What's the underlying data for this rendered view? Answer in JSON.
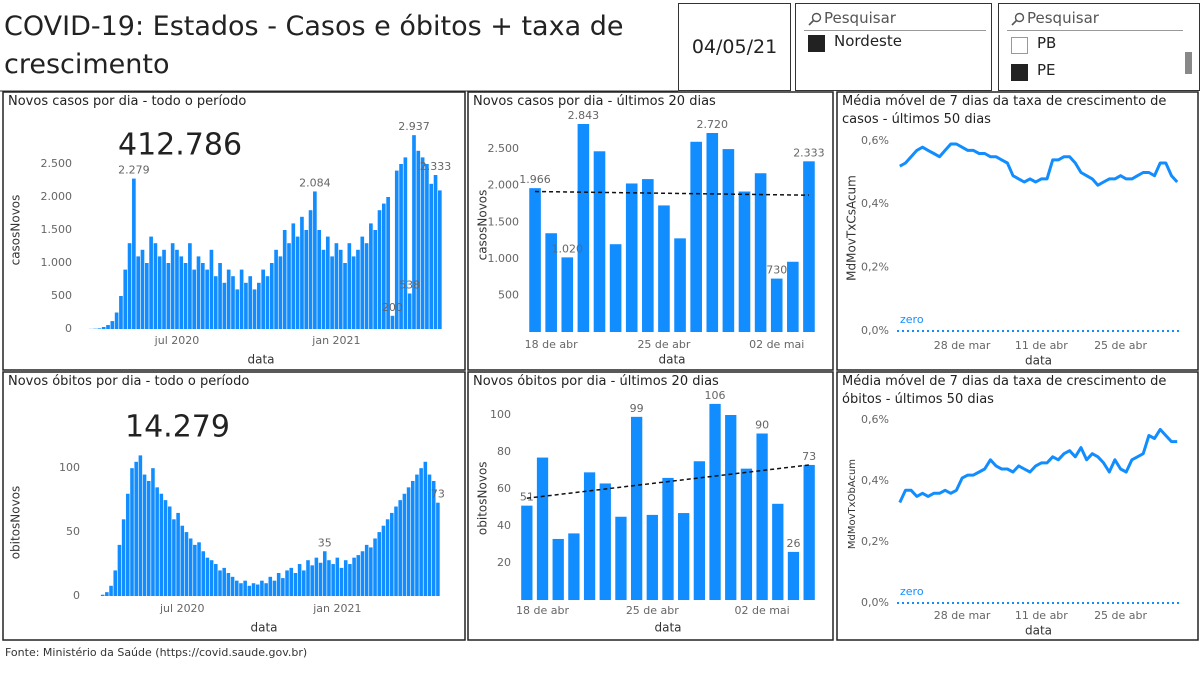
{
  "header": {
    "title": "COVID-19: Estados - Casos e óbitos + taxa de crescimento",
    "date": "04/05/21"
  },
  "slicers": [
    {
      "search": "Pesquisar",
      "items": [
        {
          "label": "Nordeste",
          "selected": true
        }
      ]
    },
    {
      "search": "Pesquisar",
      "items": [
        {
          "label": "PB",
          "selected": false
        },
        {
          "label": "PE",
          "selected": true
        }
      ]
    }
  ],
  "footer": "Fonte: Ministério da Saúde (https://covid.saude.gov.br)",
  "chart_data": [
    {
      "type": "bar",
      "title": "Novos casos por dia - todo o período",
      "total": {
        "value": 412786,
        "label": "412.786"
      },
      "x_label": "data",
      "y_label": "casosNovos",
      "color": "#118dff",
      "categories": [
        null,
        null,
        null,
        null,
        null,
        null,
        null,
        null,
        null,
        null,
        null,
        null,
        null,
        null,
        null,
        null,
        null,
        null,
        null,
        null,
        null,
        null,
        "jul 2020",
        null,
        null,
        null,
        null,
        null,
        null,
        null,
        null,
        null,
        null,
        null,
        null,
        null,
        null,
        null,
        null,
        null,
        null,
        null,
        null,
        null,
        null,
        null,
        null,
        null,
        null,
        null,
        null,
        null,
        null,
        null,
        null,
        null,
        null,
        null,
        null,
        "jan 2021",
        null,
        null,
        null,
        null,
        null,
        null,
        null,
        null,
        null,
        null,
        null,
        null,
        null,
        null,
        null,
        null,
        null,
        null,
        null,
        null,
        null,
        null,
        null,
        null
      ],
      "values": [
        0,
        0,
        2,
        5,
        10,
        30,
        60,
        120,
        250,
        500,
        900,
        1300,
        2279,
        1100,
        1200,
        1000,
        1400,
        1300,
        1100,
        1200,
        1000,
        1300,
        1200,
        1100,
        1000,
        1300,
        900,
        1100,
        1000,
        900,
        1200,
        800,
        1000,
        700,
        900,
        800,
        600,
        900,
        700,
        800,
        600,
        700,
        900,
        800,
        1000,
        1200,
        1100,
        1500,
        1300,
        1600,
        1400,
        1700,
        1500,
        1800,
        2084,
        1500,
        1200,
        1400,
        1100,
        1300,
        1200,
        1000,
        1300,
        1100,
        1200,
        1400,
        1300,
        1600,
        1500,
        1800,
        1900,
        2000,
        200,
        2400,
        2500,
        2600,
        538,
        2937,
        2700,
        2600,
        2500,
        2200,
        2333,
        2100
      ],
      "value_labels": [
        null,
        null,
        null,
        null,
        null,
        null,
        null,
        null,
        null,
        null,
        null,
        null,
        "2.279",
        null,
        null,
        null,
        null,
        null,
        null,
        null,
        null,
        null,
        null,
        null,
        null,
        null,
        null,
        null,
        null,
        null,
        null,
        null,
        null,
        null,
        null,
        null,
        null,
        null,
        null,
        null,
        null,
        null,
        null,
        null,
        null,
        null,
        null,
        null,
        null,
        null,
        null,
        null,
        null,
        null,
        "2.084",
        null,
        null,
        null,
        null,
        null,
        null,
        null,
        null,
        null,
        null,
        null,
        null,
        null,
        null,
        null,
        null,
        null,
        "200",
        null,
        null,
        null,
        "538",
        "2.937",
        null,
        null,
        null,
        null,
        "2.333",
        null
      ],
      "ylim": [
        0,
        3000
      ],
      "yticks": [
        0,
        500,
        {
          "value": 1000,
          "label": "1.000"
        },
        {
          "value": 1500,
          "label": "1.500"
        },
        {
          "value": 2000,
          "label": "2.000"
        },
        {
          "value": 2500,
          "label": "2.500"
        }
      ]
    },
    {
      "type": "bar",
      "title": "Novos casos por dia - últimos 20 dias",
      "x_label": "data",
      "y_label": "casosNovos",
      "color": "#118dff",
      "categories": [
        null,
        "18 de abr",
        null,
        null,
        null,
        null,
        null,
        null,
        "25 de abr",
        null,
        null,
        null,
        null,
        null,
        null,
        "02 de mai",
        null,
        null
      ],
      "values": [
        1966,
        1350,
        1020,
        2843,
        2470,
        1200,
        2030,
        2090,
        1730,
        1280,
        2600,
        2720,
        2500,
        1920,
        2170,
        730,
        960,
        2333
      ],
      "value_labels": [
        "1.966",
        null,
        "1.020",
        "2.843",
        null,
        null,
        null,
        null,
        null,
        null,
        null,
        "2.720",
        null,
        null,
        null,
        "730",
        null,
        "2.333"
      ],
      "trend": [
        1920,
        1870
      ],
      "ylim": [
        0,
        2925
      ],
      "yticks": [
        500,
        {
          "value": 1000,
          "label": "1.000"
        },
        {
          "value": 1500,
          "label": "1.500"
        },
        {
          "value": 2000,
          "label": "2.000"
        },
        {
          "value": 2500,
          "label": "2.500"
        }
      ]
    },
    {
      "type": "line",
      "title": "Média móvel de 7 dias da taxa de crescimento de casos - últimos 50 dias",
      "x_label": "data",
      "y_label": "MdMovTxCsAcum",
      "color": "#118dff",
      "categories": [
        null,
        null,
        null,
        null,
        null,
        null,
        null,
        null,
        null,
        null,
        null,
        "28 de mar",
        null,
        null,
        null,
        null,
        null,
        null,
        null,
        null,
        null,
        null,
        null,
        null,
        null,
        "11 de abr",
        null,
        null,
        null,
        null,
        null,
        null,
        null,
        null,
        null,
        null,
        null,
        null,
        null,
        "25 de abr",
        null,
        null,
        null,
        null,
        null,
        null,
        null,
        null,
        null,
        null
      ],
      "values": [
        0.52,
        0.53,
        0.55,
        0.57,
        0.58,
        0.57,
        0.56,
        0.55,
        0.57,
        0.59,
        0.59,
        0.58,
        0.57,
        0.57,
        0.56,
        0.56,
        0.55,
        0.55,
        0.54,
        0.53,
        0.49,
        0.48,
        0.47,
        0.48,
        0.47,
        0.48,
        0.48,
        0.54,
        0.54,
        0.55,
        0.55,
        0.53,
        0.5,
        0.49,
        0.48,
        0.46,
        0.47,
        0.48,
        0.48,
        0.49,
        0.48,
        0.48,
        0.49,
        0.5,
        0.5,
        0.49,
        0.53,
        0.53,
        0.49,
        0.47
      ],
      "reference_line": {
        "label": "zero",
        "value": 0
      },
      "ylim": [
        0,
        0.65
      ],
      "yticks": [
        {
          "value": 0,
          "label": "0,0%"
        },
        {
          "value": 0.2,
          "label": "0,2%"
        },
        {
          "value": 0.4,
          "label": "0,4%"
        },
        {
          "value": 0.6,
          "label": "0,6%"
        }
      ]
    },
    {
      "type": "bar",
      "title": "Novos óbitos por dia - todo o período",
      "total": {
        "value": 14279,
        "label": "14.279"
      },
      "x_label": "data",
      "y_label": "obitosNovos",
      "color": "#118dff",
      "categories": [
        null,
        null,
        null,
        null,
        null,
        null,
        null,
        null,
        null,
        null,
        null,
        null,
        null,
        null,
        null,
        null,
        null,
        null,
        null,
        null,
        null,
        null,
        "jul 2020",
        null,
        null,
        null,
        null,
        null,
        null,
        null,
        null,
        null,
        null,
        null,
        null,
        null,
        null,
        null,
        null,
        null,
        null,
        null,
        null,
        null,
        null,
        null,
        null,
        null,
        null,
        null,
        null,
        null,
        null,
        null,
        null,
        null,
        null,
        null,
        null,
        "jan 2021",
        null,
        null,
        null,
        null,
        null,
        null,
        null,
        null,
        null,
        null,
        null,
        null,
        null,
        null,
        null,
        null,
        null,
        null,
        null,
        null,
        null,
        null,
        null,
        null
      ],
      "values": [
        0,
        0,
        0,
        1,
        3,
        8,
        20,
        40,
        60,
        80,
        100,
        105,
        110,
        95,
        90,
        100,
        85,
        80,
        75,
        70,
        60,
        65,
        55,
        50,
        45,
        40,
        42,
        35,
        30,
        28,
        25,
        20,
        22,
        18,
        15,
        12,
        10,
        12,
        8,
        10,
        9,
        12,
        10,
        15,
        12,
        18,
        14,
        20,
        22,
        18,
        25,
        20,
        28,
        24,
        30,
        26,
        35,
        28,
        25,
        30,
        22,
        28,
        25,
        30,
        32,
        35,
        40,
        38,
        45,
        50,
        55,
        60,
        65,
        70,
        75,
        80,
        85,
        90,
        95,
        100,
        105,
        95,
        90,
        73
      ],
      "value_labels": [
        null,
        null,
        null,
        null,
        null,
        null,
        null,
        null,
        null,
        null,
        null,
        null,
        null,
        null,
        null,
        null,
        null,
        null,
        null,
        null,
        null,
        null,
        null,
        null,
        null,
        null,
        null,
        null,
        null,
        null,
        null,
        null,
        null,
        null,
        null,
        null,
        null,
        null,
        null,
        null,
        null,
        null,
        null,
        null,
        null,
        null,
        null,
        null,
        null,
        null,
        null,
        null,
        null,
        null,
        null,
        null,
        "35",
        null,
        null,
        null,
        null,
        null,
        null,
        null,
        null,
        null,
        null,
        null,
        null,
        null,
        null,
        null,
        null,
        null,
        null,
        null,
        null,
        null,
        null,
        null,
        null,
        null,
        null,
        "73"
      ],
      "ylim": [
        0,
        115
      ],
      "yticks": [
        0,
        50,
        100
      ]
    },
    {
      "type": "bar",
      "title": "Novos óbitos por dia - últimos 20 dias",
      "x_label": "data",
      "y_label": "obitosNovos",
      "color": "#118dff",
      "categories": [
        null,
        "18 de abr",
        null,
        null,
        null,
        null,
        null,
        null,
        "25 de abr",
        null,
        null,
        null,
        null,
        null,
        null,
        "02 de mai",
        null,
        null,
        null
      ],
      "values": [
        51,
        77,
        33,
        36,
        69,
        63,
        45,
        99,
        46,
        66,
        47,
        75,
        106,
        100,
        71,
        90,
        52,
        26,
        73
      ],
      "value_labels": [
        "51",
        null,
        null,
        null,
        null,
        null,
        null,
        "99",
        null,
        null,
        null,
        null,
        "106",
        null,
        null,
        "90",
        null,
        "26",
        "73"
      ],
      "trend": [
        55,
        73
      ],
      "ylim": [
        0,
        110
      ],
      "yticks": [
        20,
        40,
        60,
        80,
        100
      ]
    },
    {
      "type": "line",
      "title": "Média móvel de 7 dias da taxa de crescimento de óbitos - últimos 50 dias",
      "x_label": "data",
      "y_label": "MdMovTxObAcum",
      "color": "#118dff",
      "categories": [
        null,
        null,
        null,
        null,
        null,
        null,
        null,
        null,
        null,
        null,
        null,
        "28 de mar",
        null,
        null,
        null,
        null,
        null,
        null,
        null,
        null,
        null,
        null,
        null,
        null,
        null,
        "11 de abr",
        null,
        null,
        null,
        null,
        null,
        null,
        null,
        null,
        null,
        null,
        null,
        null,
        null,
        "25 de abr",
        null,
        null,
        null,
        null,
        null,
        null,
        null,
        null,
        null,
        null
      ],
      "values": [
        0.33,
        0.37,
        0.37,
        0.35,
        0.36,
        0.35,
        0.36,
        0.36,
        0.37,
        0.36,
        0.37,
        0.41,
        0.42,
        0.42,
        0.43,
        0.44,
        0.47,
        0.45,
        0.44,
        0.44,
        0.43,
        0.45,
        0.44,
        0.43,
        0.45,
        0.46,
        0.46,
        0.48,
        0.47,
        0.49,
        0.5,
        0.48,
        0.51,
        0.47,
        0.49,
        0.48,
        0.46,
        0.43,
        0.47,
        0.44,
        0.43,
        0.47,
        0.48,
        0.49,
        0.55,
        0.54,
        0.57,
        0.55,
        0.53,
        0.53
      ],
      "reference_line": {
        "label": "zero",
        "value": 0
      },
      "ylim": [
        0,
        0.65
      ],
      "yticks": [
        {
          "value": 0,
          "label": "0,0%"
        },
        {
          "value": 0.2,
          "label": "0,2%"
        },
        {
          "value": 0.4,
          "label": "0,4%"
        },
        {
          "value": 0.6,
          "label": "0,6%"
        }
      ]
    }
  ]
}
